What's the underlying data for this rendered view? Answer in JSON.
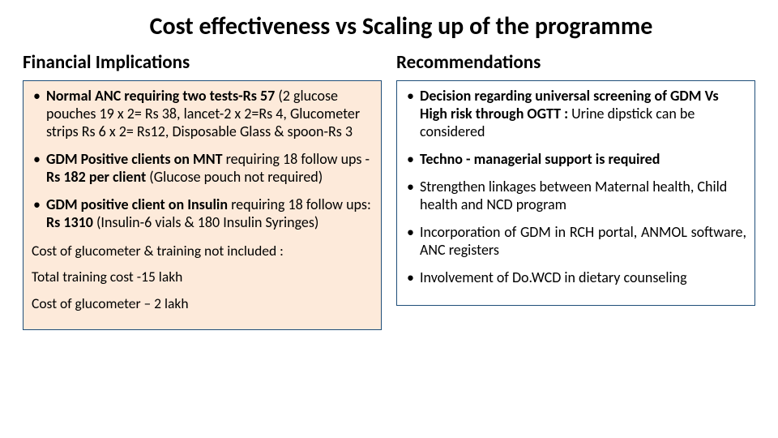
{
  "title": "Cost effectiveness vs Scaling up of the programme",
  "left": {
    "heading": "Financial Implications",
    "bullets": [
      {
        "lead": " Normal ANC  requiring two tests-Rs 57",
        "rest": "  (2 glucose pouches 19 x 2= Rs 38, lancet-2 x 2=Rs 4, Glucometer strips  Rs 6 x 2= Rs12, Disposable Glass & spoon-Rs 3"
      },
      {
        "lead": "GDM Positive clients on MNT ",
        "mid": "requiring 18 follow ups -",
        "lead2": "Rs 182 per client",
        "rest": " (Glucose pouch not required)"
      },
      {
        "lead": "GDM positive client on Insulin ",
        "mid": "requiring 18  follow ups: ",
        "lead2": "Rs 1310",
        "rest": " (Insulin-6 vials & 180 Insulin Syringes)"
      }
    ],
    "foot1": "Cost of glucometer & training not included :",
    "foot2": "Total training cost -15 lakh",
    "foot3": "Cost of glucometer – 2 lakh"
  },
  "right": {
    "heading": "Recommendations",
    "bullets": [
      {
        "lead": "Decision regarding universal screening of GDM Vs High risk through OGTT :",
        "rest": " Urine dipstick can be considered"
      },
      {
        "lead": "Techno - managerial support is required",
        "rest": ""
      },
      {
        "plain": " Strengthen linkages between Maternal health, Child health and NCD program"
      },
      {
        "plain_j": "Incorporation of GDM in RCH portal, ANMOL software, ANC registers"
      },
      {
        "plain": "Involvement of Do.WCD in dietary counseling"
      }
    ]
  },
  "colors": {
    "box_border": "#1f4e79",
    "left_bg": "#fdeada",
    "right_bg": "#ffffff"
  }
}
